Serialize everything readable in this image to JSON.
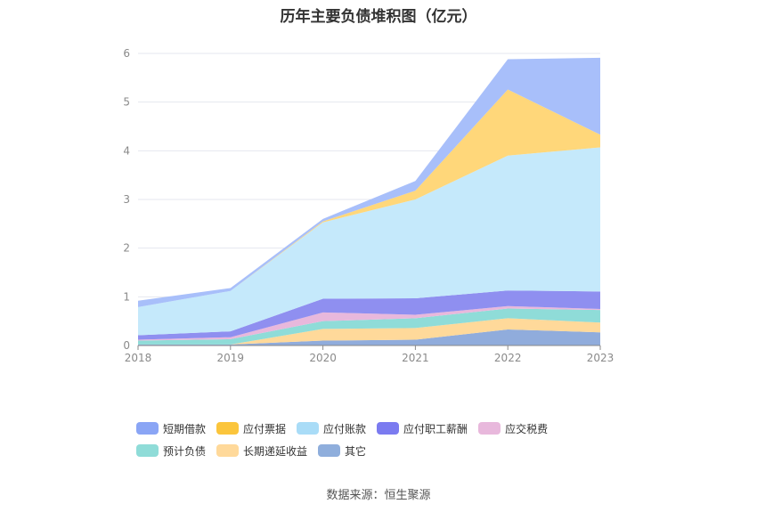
{
  "chart_data": {
    "type": "area",
    "title": "历年主要负债堆积图（亿元）",
    "x": [
      "2018",
      "2019",
      "2020",
      "2021",
      "2022",
      "2023"
    ],
    "ylim": [
      0,
      6
    ],
    "yticks": [
      "0",
      "1",
      "2",
      "3",
      "4",
      "5",
      "6"
    ],
    "stacked": true,
    "grid": true,
    "legend_position": "bottom",
    "series": [
      {
        "name": "其它",
        "color": "#90acdc",
        "values": [
          0.02,
          0.02,
          0.1,
          0.12,
          0.33,
          0.27
        ]
      },
      {
        "name": "长期递延收益",
        "color": "#ffd99a",
        "values": [
          0.0,
          0.0,
          0.24,
          0.24,
          0.23,
          0.2
        ]
      },
      {
        "name": "预计负债",
        "color": "#8fdcd8",
        "values": [
          0.08,
          0.11,
          0.16,
          0.2,
          0.2,
          0.26
        ]
      },
      {
        "name": "应交税费",
        "color": "#e8b8dc",
        "values": [
          0.02,
          0.04,
          0.18,
          0.07,
          0.05,
          0.02
        ]
      },
      {
        "name": "应付职工薪酬",
        "color": "#8f8ff0",
        "values": [
          0.09,
          0.12,
          0.28,
          0.34,
          0.32,
          0.36
        ]
      },
      {
        "name": "应付账款",
        "color": "#c5e9fb",
        "values": [
          0.58,
          0.83,
          1.57,
          2.03,
          2.77,
          2.96
        ]
      },
      {
        "name": "应付票据",
        "color": "#ffd77a",
        "values": [
          0.0,
          0.0,
          0.02,
          0.18,
          1.36,
          0.26
        ]
      },
      {
        "name": "短期借款",
        "color": "#a8bffa",
        "values": [
          0.13,
          0.06,
          0.05,
          0.2,
          0.62,
          1.58
        ]
      }
    ]
  },
  "legend": [
    {
      "label": "短期借款",
      "color": "#8aa5f5"
    },
    {
      "label": "应付票据",
      "color": "#fbc53c"
    },
    {
      "label": "应付账款",
      "color": "#a9dcf7"
    },
    {
      "label": "应付职工薪酬",
      "color": "#7b7bf0"
    },
    {
      "label": "应交税费",
      "color": "#e8b8dc"
    },
    {
      "label": "预计负债",
      "color": "#8fdcd8"
    },
    {
      "label": "长期递延收益",
      "color": "#ffd99a"
    },
    {
      "label": "其它",
      "color": "#8faedc"
    }
  ],
  "source": "数据来源：恒生聚源"
}
